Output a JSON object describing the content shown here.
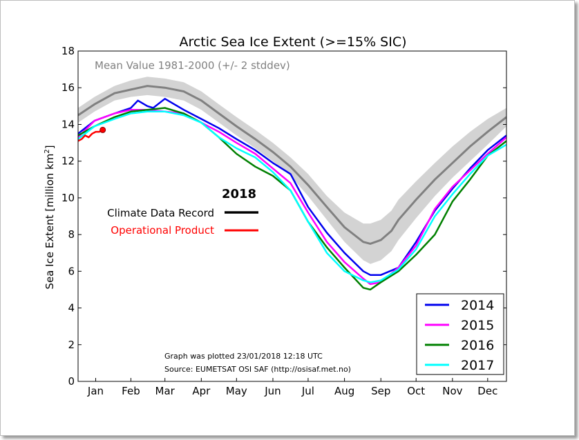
{
  "chart_data": {
    "type": "line",
    "title": "Arctic Sea Ice Extent (>=15% SIC)",
    "ylabel": "Sea Ice Extent [million km²]",
    "ylabel_main": "Sea Ice Extent [million km",
    "ylabel_sup": "2",
    "ylabel_end": "]",
    "xlabel": "",
    "ylim": [
      0,
      18
    ],
    "xlim": [
      1,
      366
    ],
    "y_ticks": [
      0,
      2,
      4,
      6,
      8,
      10,
      12,
      14,
      16,
      18
    ],
    "x_month_labels": [
      "Jan",
      "Feb",
      "Mar",
      "Apr",
      "May",
      "Jun",
      "Jul",
      "Aug",
      "Sep",
      "Oct",
      "Nov",
      "Dec"
    ],
    "x_month_positions": [
      16,
      46,
      75,
      106,
      136,
      167,
      197,
      228,
      259,
      289,
      320,
      350
    ],
    "mean_label": "Mean Value 1981-2000 (+/- 2 stddev)",
    "mean_color": "#808080",
    "band_color": "#d3d3d3",
    "mean": {
      "x": [
        1,
        15,
        32,
        46,
        60,
        75,
        91,
        106,
        121,
        136,
        152,
        167,
        182,
        197,
        213,
        228,
        244,
        250,
        259,
        268,
        274,
        289,
        305,
        320,
        335,
        350,
        366
      ],
      "y": [
        14.5,
        15.1,
        15.7,
        15.9,
        16.1,
        16.0,
        15.8,
        15.3,
        14.6,
        13.9,
        13.2,
        12.5,
        11.7,
        10.7,
        9.5,
        8.4,
        7.6,
        7.5,
        7.7,
        8.2,
        8.8,
        9.9,
        11.0,
        11.9,
        12.8,
        13.6,
        14.4
      ]
    },
    "band_upper": [
      14.9,
      15.5,
      16.1,
      16.4,
      16.6,
      16.5,
      16.3,
      15.8,
      15.1,
      14.4,
      13.7,
      13.0,
      12.2,
      11.3,
      10.1,
      9.2,
      8.6,
      8.6,
      8.8,
      9.3,
      9.9,
      10.9,
      11.9,
      12.8,
      13.6,
      14.3,
      14.9
    ],
    "band_lower": [
      14.1,
      14.7,
      15.3,
      15.5,
      15.6,
      15.5,
      15.3,
      14.8,
      14.1,
      13.4,
      12.7,
      12.0,
      11.2,
      10.1,
      8.8,
      7.6,
      6.6,
      6.4,
      6.6,
      7.1,
      7.7,
      8.9,
      10.1,
      11.1,
      12.0,
      12.9,
      13.9
    ],
    "series": [
      {
        "name": "2014",
        "color": "#0000ee",
        "x": [
          1,
          15,
          32,
          46,
          52,
          60,
          65,
          75,
          91,
          106,
          121,
          136,
          152,
          167,
          182,
          197,
          213,
          228,
          244,
          250,
          259,
          274,
          289,
          305,
          320,
          335,
          350,
          366
        ],
        "y": [
          13.5,
          14.2,
          14.6,
          14.9,
          15.3,
          15.0,
          14.9,
          15.4,
          14.8,
          14.3,
          13.8,
          13.2,
          12.6,
          11.9,
          11.3,
          9.5,
          8.1,
          7.0,
          6.0,
          5.8,
          5.8,
          6.2,
          7.6,
          9.3,
          10.5,
          11.6,
          12.6,
          13.4
        ]
      },
      {
        "name": "2015",
        "color": "#ff00ff",
        "x": [
          1,
          15,
          32,
          46,
          60,
          75,
          91,
          106,
          121,
          136,
          152,
          167,
          182,
          197,
          213,
          228,
          244,
          250,
          259,
          274,
          289,
          305,
          320,
          335,
          350,
          366
        ],
        "y": [
          13.3,
          14.2,
          14.6,
          14.8,
          14.8,
          14.7,
          14.6,
          14.1,
          13.6,
          13.0,
          12.4,
          11.6,
          10.8,
          9.2,
          7.6,
          6.5,
          5.6,
          5.3,
          5.4,
          6.2,
          7.4,
          9.4,
          10.6,
          11.5,
          12.4,
          13.3
        ]
      },
      {
        "name": "2016",
        "color": "#008000",
        "x": [
          1,
          15,
          32,
          46,
          60,
          75,
          91,
          106,
          121,
          136,
          152,
          167,
          182,
          197,
          213,
          228,
          244,
          250,
          259,
          274,
          289,
          305,
          320,
          335,
          350,
          366
        ],
        "y": [
          13.4,
          13.9,
          14.4,
          14.7,
          14.8,
          14.9,
          14.6,
          14.1,
          13.3,
          12.4,
          11.7,
          11.2,
          10.4,
          8.7,
          7.3,
          6.2,
          5.1,
          5.0,
          5.4,
          6.0,
          6.9,
          8.0,
          9.8,
          11.0,
          12.3,
          13.1
        ]
      },
      {
        "name": "2017",
        "color": "#00ffff",
        "x": [
          1,
          15,
          32,
          46,
          60,
          75,
          91,
          106,
          121,
          136,
          152,
          167,
          182,
          197,
          213,
          228,
          244,
          250,
          259,
          274,
          289,
          305,
          320,
          335,
          350,
          366
        ],
        "y": [
          13.2,
          13.9,
          14.3,
          14.6,
          14.7,
          14.7,
          14.5,
          14.1,
          13.3,
          12.7,
          12.2,
          11.4,
          10.4,
          8.7,
          7.0,
          6.0,
          5.5,
          5.4,
          5.5,
          6.1,
          7.2,
          9.0,
          10.2,
          11.3,
          12.3,
          12.9
        ]
      },
      {
        "name": "2018",
        "color": "#ff0000",
        "x": [
          1,
          4,
          7,
          10,
          13,
          16,
          19,
          22
        ],
        "y": [
          13.1,
          13.2,
          13.4,
          13.3,
          13.5,
          13.6,
          13.6,
          13.7
        ],
        "last_point": [
          22,
          13.7
        ]
      }
    ],
    "legend": {
      "placement": "bottom-right",
      "entries": [
        {
          "name": "2014",
          "color": "#0000ee"
        },
        {
          "name": "2015",
          "color": "#ff00ff"
        },
        {
          "name": "2016",
          "color": "#008000"
        },
        {
          "name": "2017",
          "color": "#00ffff"
        }
      ]
    },
    "legend_2018": {
      "year": "2018",
      "entries": [
        {
          "label": "Climate Data Record",
          "color": "#000000",
          "text_color": "#000000"
        },
        {
          "label": "Operational Product",
          "color": "#ff0000",
          "text_color": "#ff0000"
        }
      ]
    },
    "annotations": [
      "Graph was plotted 23/01/2018 12:18 UTC",
      "Source: EUMETSAT OSI SAF (http://osisaf.met.no)"
    ],
    "grid": false
  }
}
